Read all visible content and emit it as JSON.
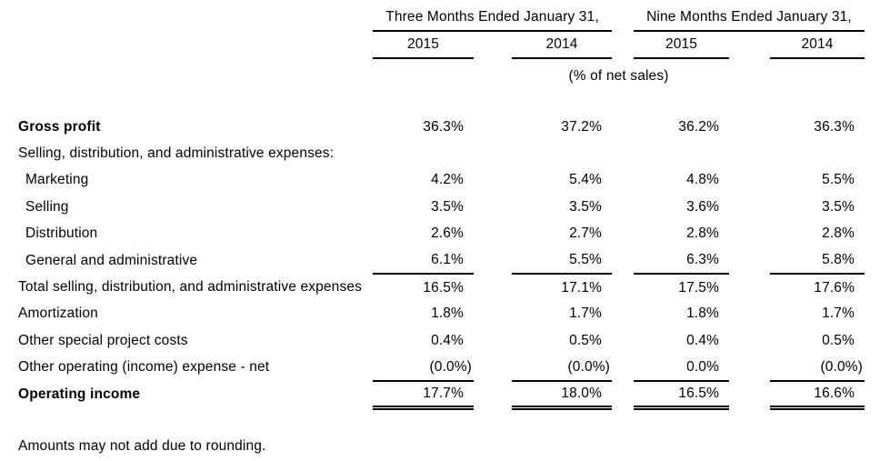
{
  "page": {
    "background": "#ffffff",
    "text_color": "#000000",
    "rule_color": "#000000"
  },
  "table": {
    "column_groups": [
      {
        "label": "Three Months Ended January 31,",
        "years": [
          "2015",
          "2014"
        ]
      },
      {
        "label": "Nine Months Ended January 31,",
        "years": [
          "2015",
          "2014"
        ]
      }
    ],
    "units_subheader": "(% of net sales)",
    "rows": [
      {
        "label": "Gross profit",
        "bold": true,
        "indent": false,
        "values": [
          "36.3%",
          "37.2%",
          "36.2%",
          "36.3%"
        ],
        "rule_below": false,
        "double_rule_below": false
      },
      {
        "label": "Selling, distribution, and administrative expenses:",
        "bold": false,
        "indent": false,
        "values": [
          "",
          "",
          "",
          ""
        ],
        "rule_below": false,
        "double_rule_below": false
      },
      {
        "label": "Marketing",
        "bold": false,
        "indent": true,
        "values": [
          "4.2%",
          "5.4%",
          "4.8%",
          "5.5%"
        ],
        "rule_below": false,
        "double_rule_below": false
      },
      {
        "label": "Selling",
        "bold": false,
        "indent": true,
        "values": [
          "3.5%",
          "3.5%",
          "3.6%",
          "3.5%"
        ],
        "rule_below": false,
        "double_rule_below": false
      },
      {
        "label": "Distribution",
        "bold": false,
        "indent": true,
        "values": [
          "2.6%",
          "2.7%",
          "2.8%",
          "2.8%"
        ],
        "rule_below": false,
        "double_rule_below": false
      },
      {
        "label": "General and administrative",
        "bold": false,
        "indent": true,
        "values": [
          "6.1%",
          "5.5%",
          "6.3%",
          "5.8%"
        ],
        "rule_below": true,
        "double_rule_below": false
      },
      {
        "label": "Total selling, distribution, and administrative expenses",
        "bold": false,
        "indent": false,
        "values": [
          "16.5%",
          "17.1%",
          "17.5%",
          "17.6%"
        ],
        "rule_below": false,
        "double_rule_below": false
      },
      {
        "label": "Amortization",
        "bold": false,
        "indent": false,
        "values": [
          "1.8%",
          "1.7%",
          "1.8%",
          "1.7%"
        ],
        "rule_below": false,
        "double_rule_below": false
      },
      {
        "label": "Other special project costs",
        "bold": false,
        "indent": false,
        "values": [
          "0.4%",
          "0.5%",
          "0.4%",
          "0.5%"
        ],
        "rule_below": false,
        "double_rule_below": false
      },
      {
        "label": "Other operating (income) expense - net",
        "bold": false,
        "indent": false,
        "values": [
          "(0.0%)",
          "(0.0%)",
          "0.0%",
          "(0.0%)"
        ],
        "rule_below": true,
        "double_rule_below": false
      },
      {
        "label": "Operating income",
        "bold": true,
        "indent": false,
        "values": [
          "17.7%",
          "18.0%",
          "16.5%",
          "16.6%"
        ],
        "rule_below": false,
        "double_rule_below": true
      }
    ],
    "footnote": "Amounts may not add due to rounding."
  }
}
